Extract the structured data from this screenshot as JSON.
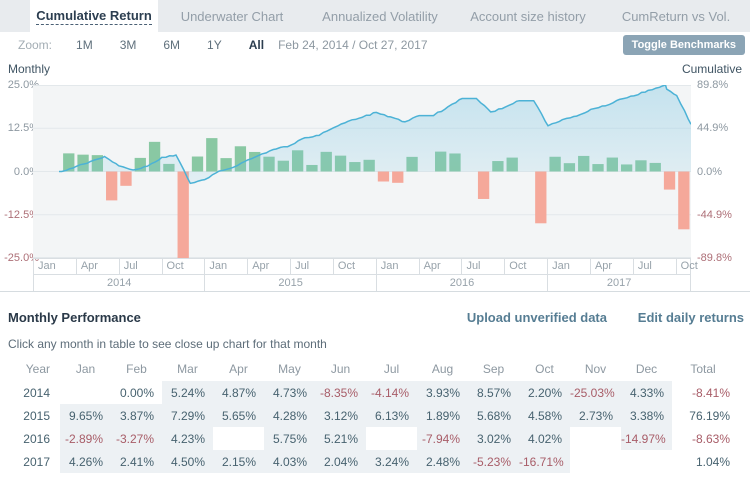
{
  "tabs": [
    {
      "label": "Cumulative Return",
      "active": true
    },
    {
      "label": "Underwater Chart",
      "active": false
    },
    {
      "label": "Annualized Volatility",
      "active": false
    },
    {
      "label": "Account size history",
      "active": false
    },
    {
      "label": "CumReturn vs Vol.",
      "active": false
    }
  ],
  "controls": {
    "zoom_label": "Zoom:",
    "zoom_options": [
      "1M",
      "3M",
      "6M",
      "1Y",
      "All"
    ],
    "active_zoom": "All",
    "date_range": "Feb 24, 2014 / Oct 27, 2017",
    "toggle_benchmarks_label": "Toggle Benchmarks"
  },
  "chart": {
    "left_axis_title": "Monthly",
    "right_axis_title": "Cumulative",
    "left_ticks": [
      "25.0%",
      "12.5%",
      "0.0%",
      "-12.5%",
      "-25.0%"
    ],
    "right_ticks": [
      "89.8%",
      "44.9%",
      "0.0%",
      "-44.9%",
      "-89.8%"
    ],
    "quarter_labels": [
      "Jan",
      "Apr",
      "Jul",
      "Oct"
    ],
    "year_labels": [
      "2014",
      "2015",
      "2016",
      "2017"
    ],
    "colors": {
      "positive_bar": "#89c8a3",
      "negative_bar": "#f5a89a",
      "line": "#4cb2d6",
      "area": "#7ec6e2",
      "plot_bg": "#f3f5f6",
      "grid": "#e3e8eb",
      "tick": "#8d98a1",
      "neg_tick": "#ad6f77"
    }
  },
  "chart_data": {
    "type": "combo-bar-line",
    "x_months": [
      "2014-01",
      "2014-02",
      "2014-03",
      "2014-04",
      "2014-05",
      "2014-06",
      "2014-07",
      "2014-08",
      "2014-09",
      "2014-10",
      "2014-11",
      "2014-12",
      "2015-01",
      "2015-02",
      "2015-03",
      "2015-04",
      "2015-05",
      "2015-06",
      "2015-07",
      "2015-08",
      "2015-09",
      "2015-10",
      "2015-11",
      "2015-12",
      "2016-01",
      "2016-02",
      "2016-03",
      "2016-04",
      "2016-05",
      "2016-06",
      "2016-07",
      "2016-08",
      "2016-09",
      "2016-10",
      "2016-11",
      "2016-12",
      "2017-01",
      "2017-02",
      "2017-03",
      "2017-04",
      "2017-05",
      "2017-06",
      "2017-07",
      "2017-08",
      "2017-09",
      "2017-10"
    ],
    "monthly_return_pct": [
      null,
      0.0,
      5.24,
      4.87,
      4.73,
      -8.35,
      -4.14,
      3.93,
      8.57,
      2.2,
      -25.03,
      4.33,
      9.65,
      3.87,
      7.29,
      5.65,
      4.28,
      3.12,
      6.13,
      1.89,
      5.68,
      4.58,
      2.73,
      3.38,
      -2.89,
      -3.27,
      4.23,
      null,
      5.75,
      5.21,
      null,
      -7.94,
      3.02,
      4.02,
      null,
      -14.97,
      4.26,
      2.41,
      4.5,
      2.15,
      4.03,
      2.04,
      3.24,
      2.48,
      -5.23,
      -16.71
    ],
    "cumulative_return_pct": [
      null,
      0.0,
      5.24,
      10.37,
      15.59,
      5.94,
      1.55,
      5.54,
      14.59,
      17.11,
      -12.2,
      -8.4,
      0.44,
      4.32,
      11.93,
      18.25,
      23.31,
      27.16,
      34.96,
      37.51,
      45.32,
      51.97,
      56.12,
      61.4,
      56.73,
      51.61,
      58.02,
      58.02,
      67.11,
      75.82,
      75.82,
      61.86,
      66.74,
      73.45,
      73.45,
      47.48,
      53.77,
      57.47,
      64.56,
      68.1,
      74.87,
      78.44,
      84.22,
      88.79,
      78.91,
      49.02
    ],
    "cumulative_peak_pct": 89.8,
    "left_axis_range": [
      -25,
      25
    ],
    "right_axis_range": [
      -89.8,
      89.8
    ],
    "start_fraction_of_first_month": 0.82
  },
  "table": {
    "title": "Monthly Performance",
    "actions": [
      {
        "label": "Upload unverified data"
      },
      {
        "label": "Edit daily returns"
      }
    ],
    "hint": "Click any month in table to see close up chart for that month",
    "headers": [
      "Year",
      "Jan",
      "Feb",
      "Mar",
      "Apr",
      "May",
      "Jun",
      "Jul",
      "Aug",
      "Sep",
      "Oct",
      "Nov",
      "Dec",
      "Total"
    ],
    "rows": [
      {
        "year": "2014",
        "cells": [
          "",
          "0.00%",
          "5.24%",
          "4.87%",
          "4.73%",
          "-8.35%",
          "-4.14%",
          "3.93%",
          "8.57%",
          "2.20%",
          "-25.03%",
          "4.33%"
        ],
        "filled": [
          false,
          false,
          true,
          true,
          true,
          true,
          true,
          true,
          true,
          true,
          true,
          true
        ],
        "total": "-8.41%"
      },
      {
        "year": "2015",
        "cells": [
          "9.65%",
          "3.87%",
          "7.29%",
          "5.65%",
          "4.28%",
          "3.12%",
          "6.13%",
          "1.89%",
          "5.68%",
          "4.58%",
          "2.73%",
          "3.38%"
        ],
        "filled": [
          true,
          true,
          true,
          true,
          true,
          true,
          true,
          true,
          true,
          true,
          true,
          true
        ],
        "total": "76.19%"
      },
      {
        "year": "2016",
        "cells": [
          "-2.89%",
          "-3.27%",
          "4.23%",
          "",
          "5.75%",
          "5.21%",
          "",
          "-7.94%",
          "3.02%",
          "4.02%",
          "",
          "-14.97%"
        ],
        "filled": [
          true,
          true,
          true,
          false,
          true,
          true,
          false,
          true,
          true,
          true,
          false,
          true
        ],
        "total": "-8.63%"
      },
      {
        "year": "2017",
        "cells": [
          "4.26%",
          "2.41%",
          "4.50%",
          "2.15%",
          "4.03%",
          "2.04%",
          "3.24%",
          "2.48%",
          "-5.23%",
          "-16.71%",
          "",
          ""
        ],
        "filled": [
          true,
          true,
          true,
          true,
          true,
          true,
          true,
          true,
          true,
          true,
          false,
          false
        ],
        "total": "1.04%"
      }
    ]
  }
}
